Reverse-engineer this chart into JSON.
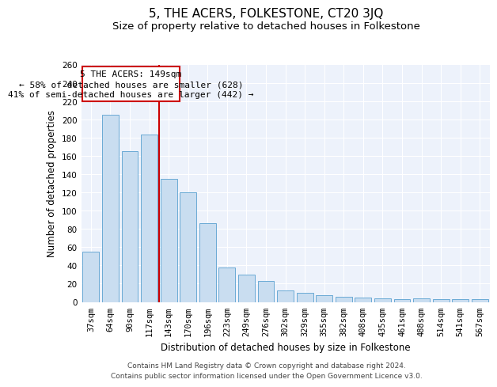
{
  "title": "5, THE ACERS, FOLKESTONE, CT20 3JQ",
  "subtitle": "Size of property relative to detached houses in Folkestone",
  "xlabel": "Distribution of detached houses by size in Folkestone",
  "ylabel": "Number of detached properties",
  "categories": [
    "37sqm",
    "64sqm",
    "90sqm",
    "117sqm",
    "143sqm",
    "170sqm",
    "196sqm",
    "223sqm",
    "249sqm",
    "276sqm",
    "302sqm",
    "329sqm",
    "355sqm",
    "382sqm",
    "408sqm",
    "435sqm",
    "461sqm",
    "488sqm",
    "514sqm",
    "541sqm",
    "567sqm"
  ],
  "values": [
    55,
    205,
    165,
    183,
    135,
    120,
    86,
    38,
    30,
    23,
    13,
    10,
    7,
    6,
    5,
    4,
    3,
    4,
    3,
    3,
    3
  ],
  "bar_color": "#c9ddf0",
  "bar_edgecolor": "#6aaad4",
  "ylim": [
    0,
    260
  ],
  "yticks": [
    0,
    20,
    40,
    60,
    80,
    100,
    120,
    140,
    160,
    180,
    200,
    220,
    240,
    260
  ],
  "vline_x_index": 3.5,
  "vline_color": "#cc0000",
  "annotation_title": "5 THE ACERS: 149sqm",
  "annotation_line1": "← 58% of detached houses are smaller (628)",
  "annotation_line2": "41% of semi-detached houses are larger (442) →",
  "annotation_box_color": "#cc0000",
  "footer_line1": "Contains HM Land Registry data © Crown copyright and database right 2024.",
  "footer_line2": "Contains public sector information licensed under the Open Government Licence v3.0.",
  "background_color": "#edf2fb",
  "grid_color": "#ffffff",
  "title_fontsize": 11,
  "subtitle_fontsize": 9.5,
  "axis_label_fontsize": 8.5,
  "tick_fontsize": 7.5,
  "annotation_fontsize": 8,
  "footer_fontsize": 6.5
}
